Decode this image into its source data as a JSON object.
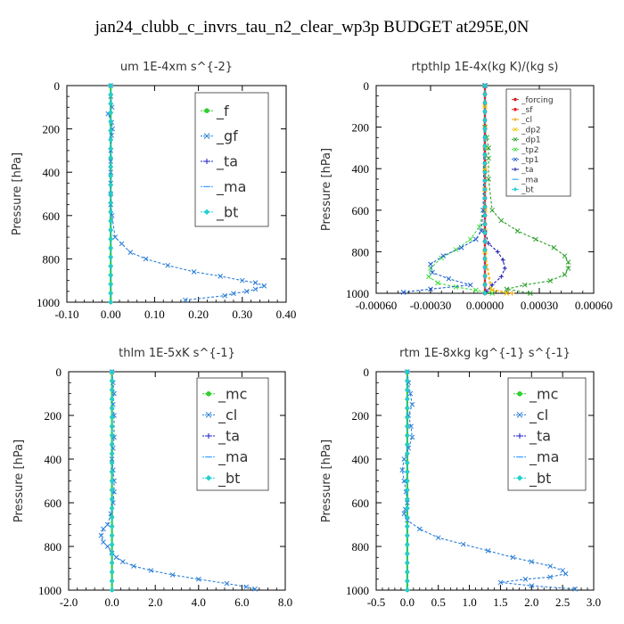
{
  "title": "jan24_clubb_c_invrs_tau_n2_clear_wp3p  BUDGET at295E,0N",
  "chart_data": [
    {
      "type": "line",
      "title": "um  1E-4xm s^{-2}",
      "ylabel": "Pressure [hPa]",
      "xlim": [
        -0.1,
        0.4
      ],
      "ylim": [
        1000,
        0
      ],
      "xticks": [
        "-0.10",
        "0.00",
        "0.10",
        "0.20",
        "0.30",
        "0.40"
      ],
      "xtick_values": [
        -0.1,
        0.0,
        0.1,
        0.2,
        0.3,
        0.4
      ],
      "yticks": [
        "0",
        "200",
        "400",
        "600",
        "800",
        "1000"
      ],
      "ytick_values": [
        0,
        200,
        400,
        600,
        800,
        1000
      ],
      "legend": "top-right",
      "legend_size": "large",
      "series": [
        {
          "name": "_f",
          "color": "#2fcf2f",
          "marker": "o",
          "x": [
            0,
            0,
            0,
            0,
            0,
            0,
            0,
            0,
            0,
            0,
            0
          ],
          "y": [
            0,
            100,
            200,
            300,
            400,
            500,
            600,
            700,
            800,
            900,
            1000
          ]
        },
        {
          "name": "_gf",
          "color": "#2b7fd6",
          "marker": "x",
          "x": [
            0.0,
            0.0,
            0.003,
            -0.006,
            0.002,
            0.004,
            0.002,
            0.0,
            0.0,
            0.0,
            0.0,
            0.0,
            0.0,
            0.003,
            0.01,
            0.025,
            0.045,
            0.08,
            0.13,
            0.19,
            0.25,
            0.3,
            0.33,
            0.35,
            0.33,
            0.31,
            0.28,
            0.26,
            0.17
          ],
          "y": [
            0,
            50,
            100,
            130,
            170,
            200,
            230,
            300,
            350,
            400,
            450,
            500,
            550,
            600,
            700,
            730,
            770,
            800,
            830,
            860,
            880,
            900,
            910,
            925,
            940,
            950,
            960,
            970,
            990
          ]
        },
        {
          "name": "_ta",
          "color": "#1a1acc",
          "marker": "+",
          "x": [
            0,
            0,
            0,
            0,
            0,
            0,
            0,
            0,
            0,
            0,
            0
          ],
          "y": [
            0,
            100,
            200,
            300,
            400,
            500,
            600,
            700,
            800,
            900,
            1000
          ]
        },
        {
          "name": "_ma",
          "color": "#3aa0ff",
          "marker": "-",
          "x": [
            0,
            0,
            0,
            0,
            0,
            0,
            0,
            0,
            0,
            0,
            0
          ],
          "y": [
            0,
            100,
            200,
            300,
            400,
            500,
            600,
            700,
            800,
            900,
            1000
          ]
        },
        {
          "name": "_bt",
          "color": "#20d0d0",
          "marker": "d",
          "x": [
            0,
            0,
            0,
            0,
            0,
            0,
            0,
            0,
            0,
            0,
            0
          ],
          "y": [
            0,
            100,
            200,
            300,
            400,
            500,
            600,
            700,
            800,
            900,
            1000
          ]
        }
      ]
    },
    {
      "type": "line",
      "title": "rtpthlp  1E-4x(kg K)/(kg s)",
      "ylabel": "Pressure [hPa]",
      "xlim": [
        -0.0006,
        0.0006
      ],
      "ylim": [
        1000,
        0
      ],
      "xticks": [
        "-0.00060",
        "-0.00030",
        "0.00000",
        "0.00030",
        "0.00060"
      ],
      "xtick_values": [
        -0.0006,
        -0.0003,
        0.0,
        0.0003,
        0.0006
      ],
      "yticks": [
        "0",
        "200",
        "400",
        "600",
        "800",
        "1000"
      ],
      "ytick_values": [
        0,
        200,
        400,
        600,
        800,
        1000
      ],
      "legend": "top-right",
      "legend_size": "small",
      "series": [
        {
          "name": "_forcing",
          "color": "#cc2020",
          "marker": "o",
          "x": [
            0,
            0,
            0,
            0,
            0,
            0,
            0,
            0,
            0,
            0,
            0
          ],
          "y": [
            0,
            100,
            200,
            300,
            400,
            500,
            600,
            700,
            800,
            900,
            1000
          ]
        },
        {
          "name": "_sf",
          "color": "#e02020",
          "marker": "o",
          "x": [
            0,
            0,
            0,
            0,
            0,
            0,
            0,
            0,
            0,
            0,
            0
          ],
          "y": [
            0,
            100,
            200,
            300,
            400,
            500,
            600,
            700,
            800,
            900,
            1000
          ]
        },
        {
          "name": "_cl",
          "color": "#f0a000",
          "marker": "+",
          "x": [
            0,
            0,
            0,
            0,
            0,
            0,
            0,
            0,
            0,
            3e-05,
            0.00015
          ],
          "y": [
            0,
            100,
            200,
            300,
            400,
            500,
            600,
            700,
            800,
            980,
            1000
          ]
        },
        {
          "name": "_dp2",
          "color": "#f0c000",
          "marker": "x",
          "x": [
            0,
            0,
            0,
            0,
            0,
            0,
            0,
            0,
            0,
            4e-05,
            0.00012
          ],
          "y": [
            0,
            100,
            200,
            300,
            400,
            500,
            600,
            700,
            800,
            985,
            1000
          ]
        },
        {
          "name": "_dp1",
          "color": "#2ca02c",
          "marker": "x",
          "x": [
            0,
            0,
            1e-05,
            2e-05,
            2e-05,
            2e-05,
            4e-05,
            9e-05,
            0.00018,
            0.00028,
            0.00038,
            0.00044,
            0.00046,
            0.00046,
            0.00044,
            0.00036,
            0.00022,
            0.00012,
            0.00025
          ],
          "y": [
            0,
            200,
            250,
            300,
            350,
            450,
            600,
            650,
            700,
            740,
            780,
            820,
            850,
            880,
            910,
            940,
            960,
            980,
            1000
          ]
        },
        {
          "name": "_tp2",
          "color": "#40dd40",
          "marker": "x",
          "x": [
            0,
            -1e-05,
            -3e-05,
            -8e-05,
            -0.00016,
            -0.00024,
            -0.0003,
            -0.00031,
            -0.00026,
            -0.00016,
            -5e-05,
            4e-05
          ],
          "y": [
            0,
            600,
            680,
            740,
            790,
            830,
            880,
            920,
            950,
            970,
            985,
            1000
          ]
        },
        {
          "name": "_tp1",
          "color": "#2060d0",
          "marker": "x",
          "x": [
            0,
            -1e-05,
            -2e-05,
            -5e-05,
            -0.00013,
            -0.00023,
            -0.0003,
            -0.00029,
            -0.0002,
            -8e-05,
            -0.0003,
            -0.00045
          ],
          "y": [
            0,
            600,
            700,
            740,
            780,
            820,
            860,
            900,
            930,
            960,
            980,
            995
          ]
        },
        {
          "name": "_ta",
          "color": "#2020b0",
          "marker": "+",
          "x": [
            0,
            0,
            2e-05,
            7e-05,
            0.0001,
            0.00011,
            9e-05,
            4e-05,
            1e-05
          ],
          "y": [
            0,
            700,
            760,
            800,
            840,
            880,
            920,
            960,
            990
          ]
        },
        {
          "name": "_ma",
          "color": "#40b0ff",
          "marker": "-",
          "x": [
            0,
            0,
            0,
            0,
            0,
            0,
            0,
            0,
            0,
            0,
            0
          ],
          "y": [
            0,
            100,
            200,
            300,
            400,
            500,
            600,
            700,
            800,
            900,
            1000
          ]
        },
        {
          "name": "_bt",
          "color": "#20d0d0",
          "marker": "d",
          "x": [
            0,
            0,
            0,
            0,
            0,
            0,
            0,
            0,
            0,
            0,
            0
          ],
          "y": [
            0,
            100,
            200,
            300,
            400,
            500,
            600,
            700,
            800,
            900,
            1000
          ]
        }
      ]
    },
    {
      "type": "line",
      "title": "thlm  1E-5xK s^{-1}",
      "ylabel": "Pressure [hPa]",
      "xlim": [
        -2.0,
        8.0
      ],
      "ylim": [
        1000,
        0
      ],
      "xticks": [
        "-2.0",
        "0.0",
        "2.0",
        "4.0",
        "6.0",
        "8.0"
      ],
      "xtick_values": [
        -2.0,
        0.0,
        2.0,
        4.0,
        6.0,
        8.0
      ],
      "yticks": [
        "0",
        "200",
        "400",
        "600",
        "800",
        "1000"
      ],
      "ytick_values": [
        0,
        200,
        400,
        600,
        800,
        1000
      ],
      "legend": "top-right",
      "legend_size": "large",
      "series": [
        {
          "name": "_mc",
          "color": "#2fcf2f",
          "marker": "o",
          "x": [
            0,
            0,
            0,
            0,
            0,
            0,
            0,
            0,
            0,
            0,
            0
          ],
          "y": [
            0,
            100,
            200,
            300,
            400,
            500,
            600,
            700,
            800,
            900,
            1000
          ]
        },
        {
          "name": "_cl",
          "color": "#2b7fd6",
          "marker": "x",
          "x": [
            0.0,
            0.05,
            0.1,
            0.05,
            0.1,
            0.1,
            0.05,
            0.0,
            0.05,
            0.1,
            0.1,
            0.05,
            -0.05,
            -0.2,
            -0.4,
            -0.5,
            -0.4,
            -0.2,
            0.0,
            0.2,
            0.5,
            1.0,
            1.8,
            2.8,
            4.0,
            5.3,
            6.2,
            6.6
          ],
          "y": [
            0,
            50,
            100,
            150,
            200,
            300,
            350,
            400,
            450,
            500,
            550,
            600,
            650,
            700,
            720,
            750,
            780,
            800,
            830,
            850,
            870,
            890,
            910,
            930,
            950,
            970,
            985,
            995
          ]
        },
        {
          "name": "_ta",
          "color": "#1a1acc",
          "marker": "+",
          "x": [
            0,
            0,
            0,
            0,
            0,
            0,
            0,
            0,
            0,
            0,
            0
          ],
          "y": [
            0,
            100,
            200,
            300,
            400,
            500,
            600,
            700,
            800,
            900,
            1000
          ]
        },
        {
          "name": "_ma",
          "color": "#3aa0ff",
          "marker": "-",
          "x": [
            0,
            0,
            0,
            0,
            0,
            0,
            0,
            0,
            0,
            0,
            0
          ],
          "y": [
            0,
            100,
            200,
            300,
            400,
            500,
            600,
            700,
            800,
            900,
            1000
          ]
        },
        {
          "name": "_bt",
          "color": "#20d0d0",
          "marker": "d",
          "x": [
            0,
            0,
            0,
            0,
            0,
            0,
            0,
            0,
            0,
            0,
            0
          ],
          "y": [
            0,
            100,
            200,
            300,
            400,
            500,
            600,
            700,
            800,
            900,
            1000
          ]
        }
      ]
    },
    {
      "type": "line",
      "title": "rtm  1E-8xkg kg^{-1} s^{-1}",
      "ylabel": "Pressure [hPa]",
      "xlim": [
        -0.5,
        3.0
      ],
      "ylim": [
        1000,
        0
      ],
      "xticks": [
        "-0.5",
        "0.0",
        "0.5",
        "1.0",
        "1.5",
        "2.0",
        "2.5",
        "3.0"
      ],
      "xtick_values": [
        -0.5,
        0.0,
        0.5,
        1.0,
        1.5,
        2.0,
        2.5,
        3.0
      ],
      "yticks": [
        "0",
        "200",
        "400",
        "600",
        "800",
        "1000"
      ],
      "ytick_values": [
        0,
        200,
        400,
        600,
        800,
        1000
      ],
      "legend": "top-right",
      "legend_size": "large",
      "series": [
        {
          "name": "_mc",
          "color": "#2fcf2f",
          "marker": "o",
          "x": [
            0,
            0,
            0,
            0,
            0,
            0,
            0,
            0,
            0,
            0,
            0
          ],
          "y": [
            0,
            100,
            200,
            300,
            400,
            500,
            600,
            700,
            800,
            900,
            1000
          ]
        },
        {
          "name": "_cl",
          "color": "#2b7fd6",
          "marker": "x",
          "x": [
            0.0,
            0.02,
            0.05,
            0.08,
            0.02,
            0.06,
            0.08,
            0.02,
            -0.05,
            -0.08,
            -0.05,
            -0.02,
            0.0,
            -0.03,
            -0.05,
            0.0,
            0.2,
            0.5,
            0.9,
            1.3,
            1.7,
            2.0,
            2.3,
            2.5,
            2.55,
            2.3,
            1.9,
            1.5,
            2.0,
            2.7
          ],
          "y": [
            0,
            50,
            100,
            150,
            200,
            250,
            300,
            350,
            400,
            450,
            500,
            550,
            600,
            630,
            650,
            680,
            720,
            760,
            790,
            820,
            850,
            870,
            890,
            910,
            925,
            940,
            950,
            965,
            980,
            995
          ]
        },
        {
          "name": "_ta",
          "color": "#1a1acc",
          "marker": "+",
          "x": [
            0,
            0,
            0,
            0,
            0,
            0,
            0,
            0,
            0,
            0,
            0
          ],
          "y": [
            0,
            100,
            200,
            300,
            400,
            500,
            600,
            700,
            800,
            900,
            1000
          ]
        },
        {
          "name": "_ma",
          "color": "#3aa0ff",
          "marker": "-",
          "x": [
            0,
            0,
            0,
            0,
            0,
            0,
            0,
            0,
            0,
            0,
            0
          ],
          "y": [
            0,
            100,
            200,
            300,
            400,
            500,
            600,
            700,
            800,
            900,
            1000
          ]
        },
        {
          "name": "_bt",
          "color": "#20d0d0",
          "marker": "d",
          "x": [
            0,
            0,
            0,
            0,
            0,
            0,
            0,
            0,
            0,
            0,
            0
          ],
          "y": [
            0,
            100,
            200,
            300,
            400,
            500,
            600,
            700,
            800,
            900,
            1000
          ]
        }
      ]
    }
  ]
}
